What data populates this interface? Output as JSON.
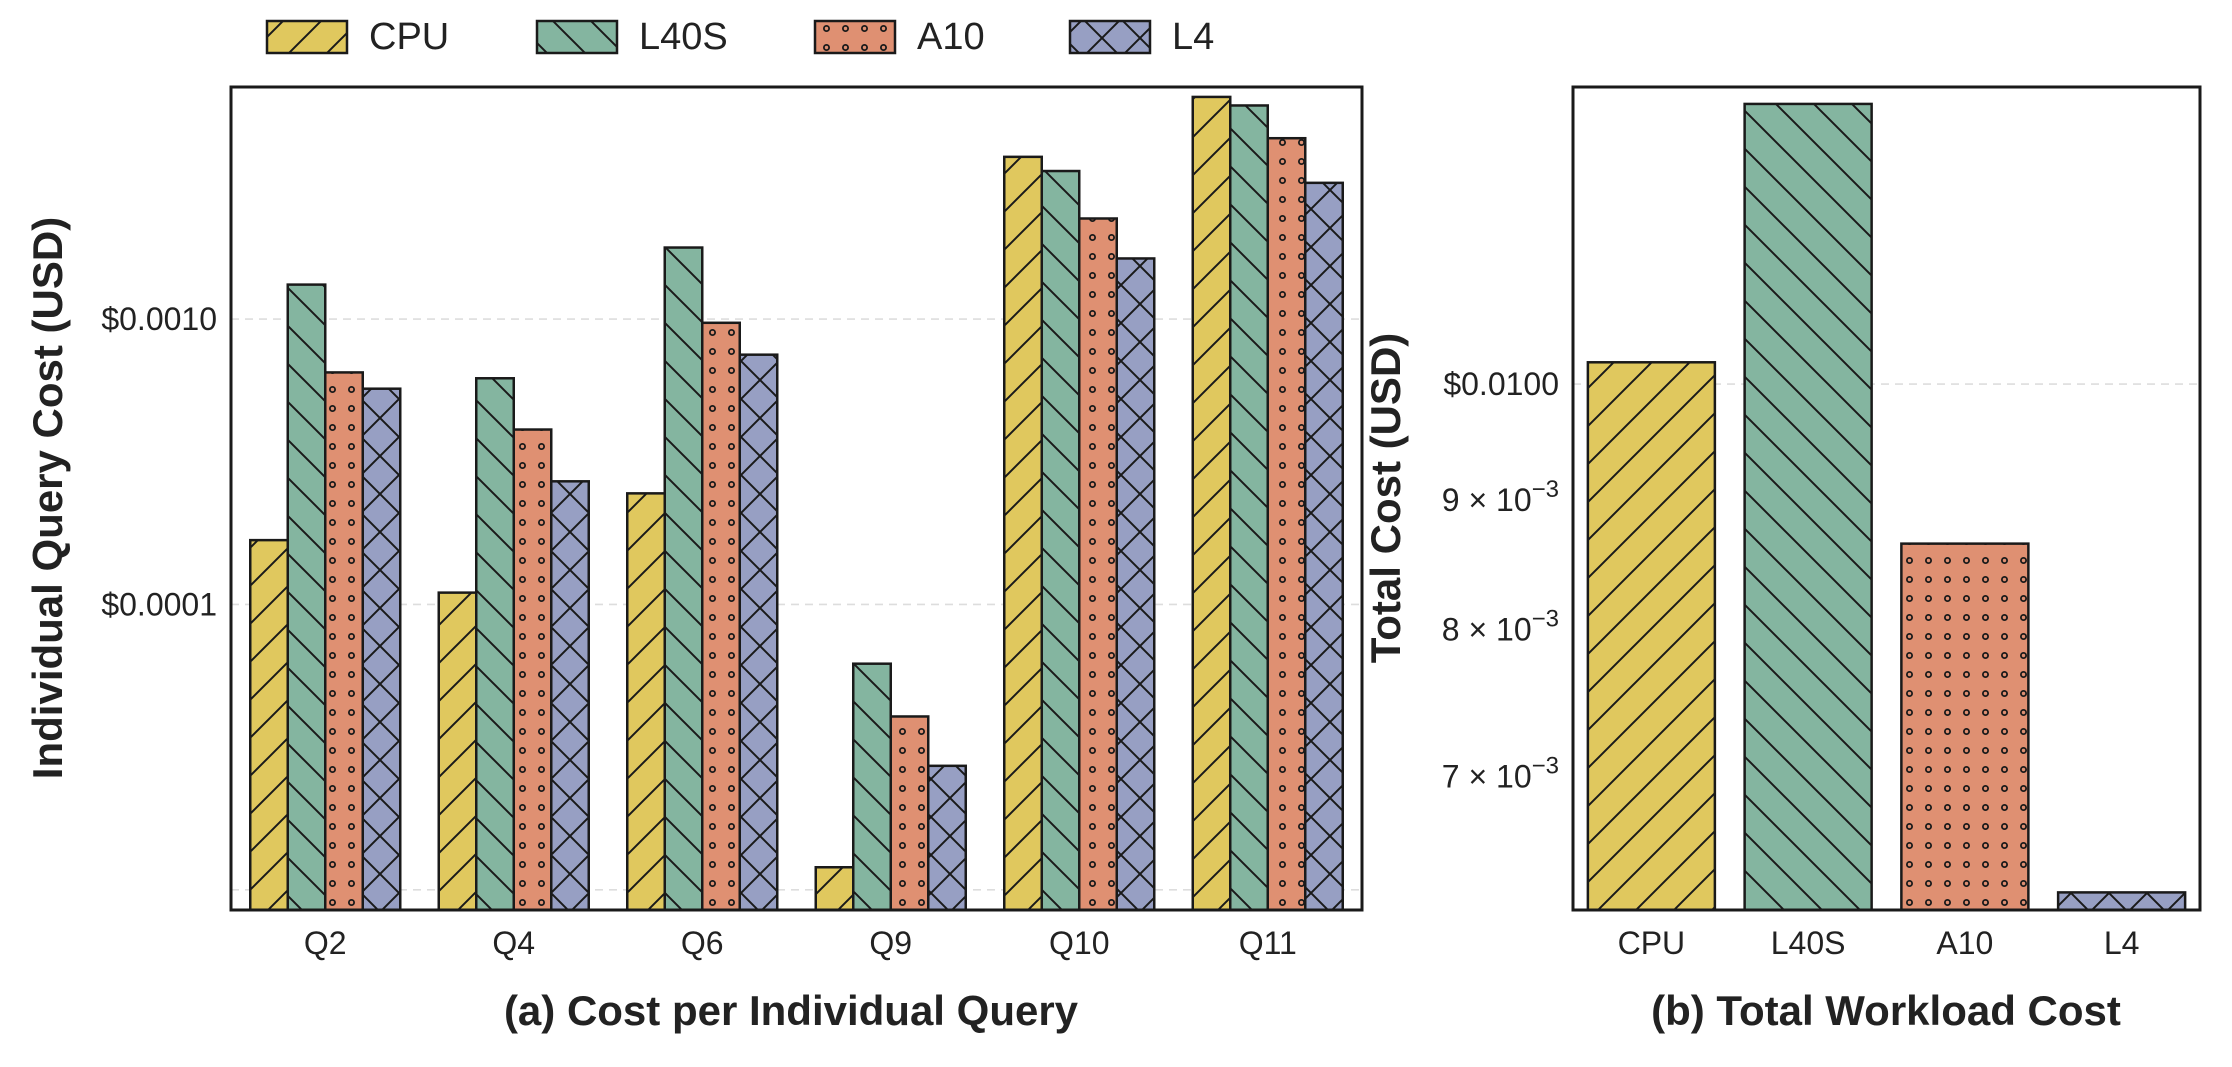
{
  "legend": {
    "items": [
      {
        "label": "CPU",
        "color": "#E0C85E",
        "hatch": "diag-fwd"
      },
      {
        "label": "L40S",
        "color": "#84B5A0",
        "hatch": "diag-back"
      },
      {
        "label": "A10",
        "color": "#DF9072",
        "hatch": "dots"
      },
      {
        "label": "L4",
        "color": "#979FC3",
        "hatch": "cross"
      }
    ]
  },
  "chart_data": [
    {
      "type": "bar",
      "caption": "(a) Cost per Individual Query",
      "ylabel": "Individual Query Cost (USD)",
      "yscale": "log",
      "ylim": [
        8.5e-06,
        0.0065
      ],
      "yticks": [
        {
          "value": 0.0001,
          "label": "$0.0001"
        },
        {
          "value": 0.001,
          "label": "$0.0010"
        }
      ],
      "grid_lines": [
        1e-05,
        0.0001,
        0.001
      ],
      "categories": [
        "Q2",
        "Q4",
        "Q6",
        "Q9",
        "Q10",
        "Q11"
      ],
      "series": [
        {
          "name": "CPU",
          "values": [
            0.000168,
            0.00011,
            0.000245,
            1.2e-05,
            0.0037,
            0.006
          ]
        },
        {
          "name": "L40S",
          "values": [
            0.00132,
            0.00062,
            0.00178,
            6.2e-05,
            0.0033,
            0.0056
          ]
        },
        {
          "name": "A10",
          "values": [
            0.00065,
            0.00041,
            0.00097,
            4.05e-05,
            0.00225,
            0.0043
          ]
        },
        {
          "name": "L4",
          "values": [
            0.00057,
            0.00027,
            0.00075,
            2.72e-05,
            0.00163,
            0.003
          ]
        }
      ]
    },
    {
      "type": "bar",
      "caption": "(b) Total Workload Cost",
      "ylabel": "Total Cost (USD)",
      "yscale": "log",
      "ylim": [
        0.0062,
        0.0131
      ],
      "yticks": [
        {
          "value": 0.007,
          "label": "7 × 10",
          "exp": "−3"
        },
        {
          "value": 0.008,
          "label": "8 × 10",
          "exp": "−3"
        },
        {
          "value": 0.009,
          "label": "9 × 10",
          "exp": "−3"
        },
        {
          "value": 0.01,
          "label": "$0.0100",
          "exp": ""
        }
      ],
      "grid_lines": [
        0.01
      ],
      "categories": [
        "CPU",
        "L40S",
        "A10",
        "L4"
      ],
      "values": [
        0.0102,
        0.0129,
        0.00865,
        0.0063
      ]
    }
  ]
}
